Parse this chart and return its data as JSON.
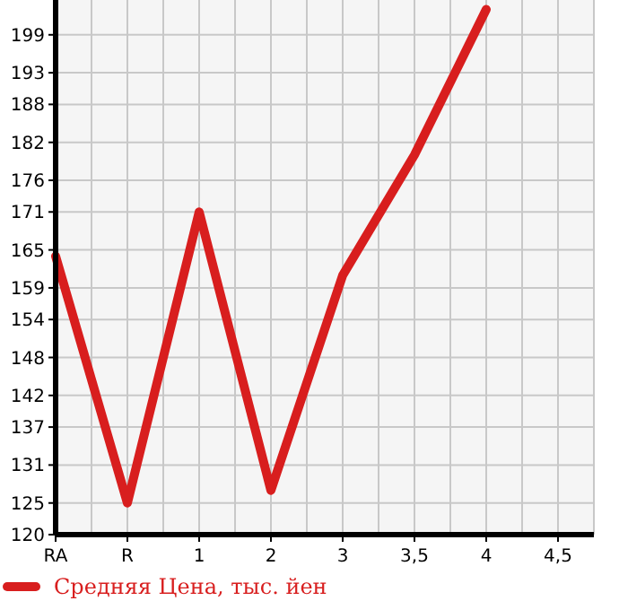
{
  "chart_data": {
    "type": "line",
    "categories": [
      "RA",
      "R",
      "1",
      "2",
      "3",
      "3,5",
      "4",
      "4,5"
    ],
    "series": [
      {
        "name": "Средняя Цена, тыс. йен",
        "color": "#d81e1e",
        "values": [
          164,
          125,
          171,
          127,
          161,
          180,
          203,
          null
        ]
      }
    ],
    "ylim": [
      120,
      204.5
    ],
    "yticks": [
      120,
      125,
      131,
      137,
      142,
      148,
      154,
      159,
      165,
      171,
      176,
      182,
      188,
      193,
      199
    ],
    "grid": true,
    "legend": "bottom",
    "marker": "none",
    "line_style": "solid"
  }
}
